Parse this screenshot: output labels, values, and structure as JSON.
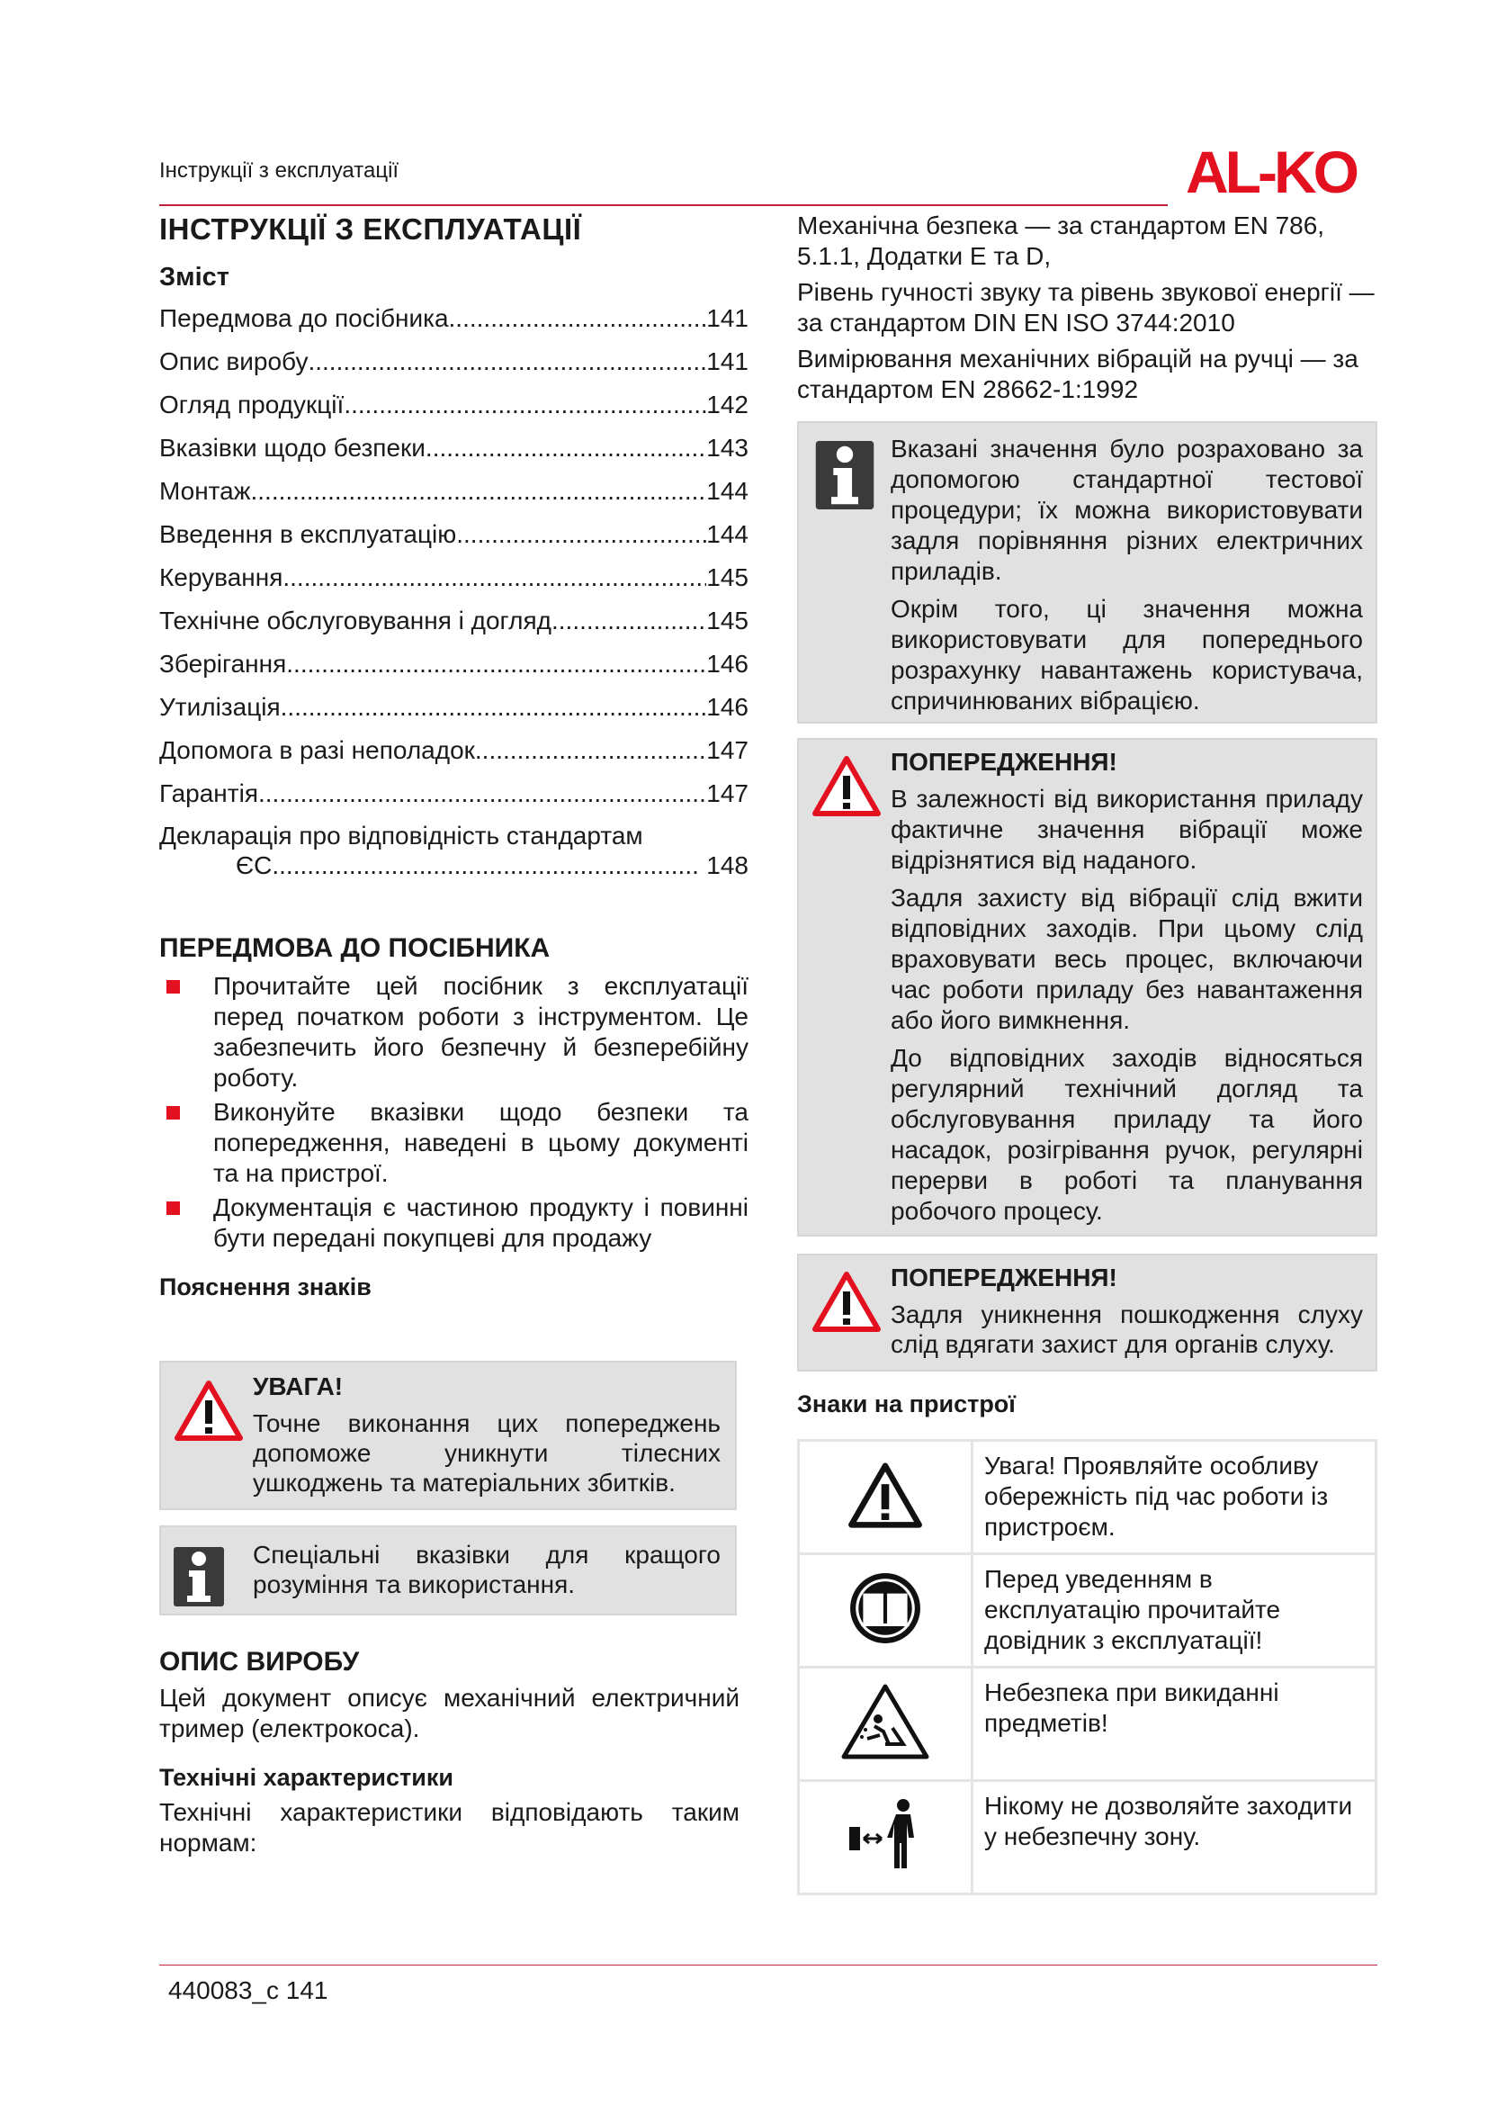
{
  "header": {
    "running_title": "Інструкції з експлуатації",
    "logo": "AL-KO",
    "accent": "#c0233a",
    "logo_color": "#e3101f"
  },
  "left": {
    "title": "ІНСТРУКЦІЇ З ЕКСПЛУАТАЦІЇ",
    "toc_heading": "Зміст",
    "toc": [
      {
        "label": "Передмова до посібника",
        "page": "141"
      },
      {
        "label": "Опис виробу",
        "page": "141"
      },
      {
        "label": "Огляд продукції",
        "page": "142"
      },
      {
        "label": "Вказівки щодо безпеки",
        "page": "143"
      },
      {
        "label": "Монтаж",
        "page": "144"
      },
      {
        "label": "Введення в експлуатацію",
        "page": "144"
      },
      {
        "label": "Керування",
        "page": "145"
      },
      {
        "label": "Технічне обслуговування і догляд",
        "page": "145"
      },
      {
        "label": "Зберігання",
        "page": "146"
      },
      {
        "label": "Утилізація",
        "page": "146"
      },
      {
        "label": "Допомога в разі неполадок",
        "page": "147"
      },
      {
        "label": "Гарантія",
        "page": "147"
      }
    ],
    "toc_last": {
      "label_line1": "Декларація про відповідність стандартам",
      "label_line2": "ЄС",
      "page": "148"
    },
    "foreword_heading": "ПЕРЕДМОВА ДО ПОСІБНИКА",
    "foreword_bullets": [
      "Прочитайте цей посібник з експлуатації перед початком роботи з інструментом. Це забезпечить його безпечну й безперебійну роботу.",
      "Виконуйте вказівки щодо безпеки та попередження, наведені в цьому документі та на пристрої.",
      "Документація є частиною продукту і повинні бути передані покупцеві для продажу"
    ],
    "signs_heading": "Пояснення знаків",
    "warning_box": {
      "title": "УВАГА!",
      "text": "Точне виконання цих попереджень допоможе уникнути тілесних ушкоджень та матеріальних збитків."
    },
    "info_box": {
      "text": "Спеціальні вказівки для кращого розуміння та використання."
    },
    "product_heading": "ОПИС ВИРОБУ",
    "product_text": "Цей документ описує механічний електричний тример (електрокоса).",
    "tech_heading": "Технічні характеристики",
    "tech_text": "Технічні характеристики відповідають таким нормам:"
  },
  "right": {
    "norms": [
      "Механічна безпека — за стандартом EN 786, 5.1.1, Додатки E та D,",
      "Рівень гучності звуку та рівень звукової енергії — за стандартом DIN EN ISO 3744:2010",
      "Вимірювання механічних вібрацій на ручці — за стандартом EN 28662-1:1992"
    ],
    "info_box": {
      "paragraphs": [
        "Вказані значення було розраховано за допомогою стандартної тестової процедури; їх можна використовувати задля порівняння різних електричних приладів.",
        "Окрім того, ці значення можна використовувати для попереднього розрахунку навантажень користувача, спричинюваних вібрацією."
      ]
    },
    "warning1": {
      "title": "ПОПЕРЕДЖЕННЯ!",
      "paragraphs": [
        "В залежності від використання приладу фактичне значення вібрації може відрізнятися від наданого.",
        "Задля захисту від вібрації слід вжити відповідних заходів. При цьому слід враховувати весь процес, включаючи час роботи приладу без навантаження або його вимкнення.",
        "До відповідних заходів відносяться регулярний технічний догляд та обслуговування приладу та його насадок, розігрівання ручок, регулярні перерви в роботі та планування робочого процесу."
      ]
    },
    "warning2": {
      "title": "ПОПЕРЕДЖЕННЯ!",
      "text": "Задля уникнення пошкодження слуху слід вдягати захист для органів слуху."
    },
    "device_signs_heading": "Знаки на пристрої",
    "device_signs": [
      {
        "icon": "warning-triangle-icon",
        "text": "Увага! Проявляйте особливу обережність під час роботи із пристроєм."
      },
      {
        "icon": "read-manual-icon",
        "text": "Перед уведенням в експлуатацію прочитайте довідник з експлуатації!"
      },
      {
        "icon": "thrown-objects-icon",
        "text": "Небезпека при викиданні предметів!"
      },
      {
        "icon": "keep-distance-icon",
        "text": "Нікому не дозволяйте заходити у небезпечну зону."
      }
    ]
  },
  "footer": {
    "text": "440083_c 141"
  }
}
